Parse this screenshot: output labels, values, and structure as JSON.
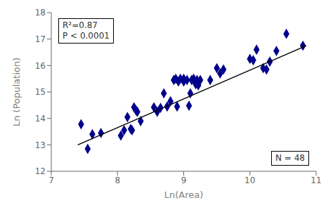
{
  "chart_data": {
    "type": "scatter",
    "xlabel": "Ln(Area)",
    "ylabel": "Ln (Population)",
    "xlim": [
      7.0,
      11.0
    ],
    "ylim": [
      12.0,
      18.0
    ],
    "xticks": [
      7,
      8,
      9,
      10,
      11
    ],
    "yticks": [
      12,
      13,
      14,
      15,
      16,
      17,
      18
    ],
    "grid": false,
    "annotations": [
      "R²=0.87\nP < 0.0001",
      "N = 48"
    ],
    "series": [
      {
        "type": "scatter",
        "color": "#00008B",
        "marker": "diamond",
        "x": [
          7.45,
          7.55,
          7.62,
          7.75,
          8.05,
          8.1,
          8.15,
          8.2,
          8.22,
          8.25,
          8.28,
          8.3,
          8.35,
          8.55,
          8.6,
          8.65,
          8.7,
          8.75,
          8.8,
          8.85,
          8.88,
          8.9,
          8.92,
          8.95,
          9.0,
          9.0,
          9.05,
          9.08,
          9.1,
          9.12,
          9.15,
          9.18,
          9.2,
          9.22,
          9.25,
          9.4,
          9.5,
          9.55,
          9.6,
          10.0,
          10.05,
          10.1,
          10.2,
          10.25,
          10.3,
          10.4,
          10.55,
          10.8
        ],
        "values": [
          13.78,
          12.85,
          13.4,
          13.45,
          13.35,
          13.55,
          14.05,
          13.6,
          13.55,
          14.42,
          14.3,
          14.25,
          13.9,
          14.42,
          14.25,
          14.4,
          14.95,
          14.45,
          14.65,
          15.45,
          15.5,
          14.45,
          15.4,
          15.5,
          15.5,
          15.4,
          15.45,
          14.48,
          14.95,
          15.45,
          15.5,
          15.3,
          15.45,
          15.25,
          15.45,
          15.45,
          15.9,
          15.7,
          15.85,
          16.25,
          16.2,
          16.6,
          15.9,
          15.85,
          16.15,
          16.55,
          17.2,
          16.75
        ]
      },
      {
        "type": "line",
        "color": "#000000",
        "x": [
          7.4,
          10.85
        ],
        "values": [
          13.0,
          16.75
        ]
      }
    ]
  }
}
